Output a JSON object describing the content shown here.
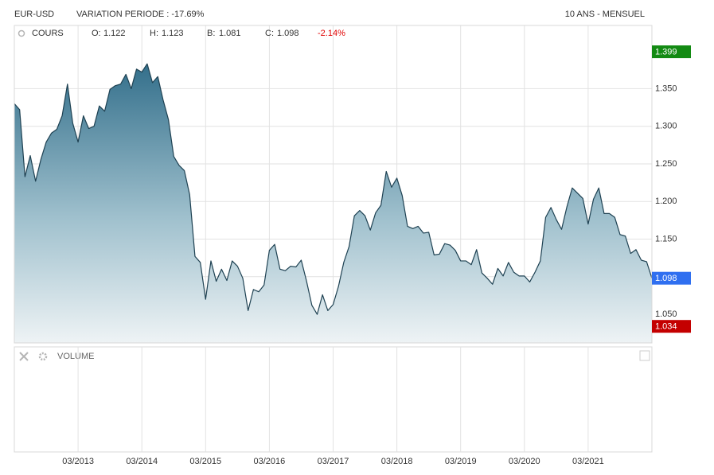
{
  "chart_data": {
    "type": "area",
    "title": "EUR-USD",
    "subtitle": "VARIATION PERIODE : -17.69%",
    "period": "10 ANS - MENSUEL",
    "series_label": "COURS",
    "legend": [
      {
        "key": "O:",
        "value": 1.122
      },
      {
        "key": "H:",
        "value": 1.123
      },
      {
        "key": "B:",
        "value": 1.081
      },
      {
        "key": "C:",
        "value": 1.098
      }
    ],
    "change": "-2.14%",
    "change_color": "#e00000",
    "volume_label": "VOLUME",
    "color": "#1e4152",
    "categories": [
      null,
      null,
      null,
      null,
      null,
      null,
      null,
      null,
      null,
      null,
      null,
      null,
      "03/2013",
      null,
      null,
      null,
      null,
      null,
      null,
      null,
      null,
      null,
      null,
      null,
      "03/2014",
      null,
      null,
      null,
      null,
      null,
      null,
      null,
      null,
      null,
      null,
      null,
      "03/2015",
      null,
      null,
      null,
      null,
      null,
      null,
      null,
      null,
      null,
      null,
      null,
      "03/2016",
      null,
      null,
      null,
      null,
      null,
      null,
      null,
      null,
      null,
      null,
      null,
      "03/2017",
      null,
      null,
      null,
      null,
      null,
      null,
      null,
      null,
      null,
      null,
      null,
      "03/2018",
      null,
      null,
      null,
      null,
      null,
      null,
      null,
      null,
      null,
      null,
      null,
      "03/2019",
      null,
      null,
      null,
      null,
      null,
      null,
      null,
      null,
      null,
      null,
      null,
      "03/2020",
      null,
      null,
      null,
      null,
      null,
      null,
      null,
      null,
      null,
      null,
      null,
      "03/2021",
      null,
      null,
      null,
      null,
      null,
      null,
      null,
      null,
      null,
      null,
      null,
      null
    ],
    "values": [
      1.33,
      1.322,
      1.233,
      1.261,
      1.227,
      1.256,
      1.279,
      1.291,
      1.296,
      1.314,
      1.356,
      1.304,
      1.279,
      1.314,
      1.297,
      1.3,
      1.327,
      1.32,
      1.349,
      1.354,
      1.356,
      1.369,
      1.35,
      1.376,
      1.372,
      1.383,
      1.358,
      1.366,
      1.335,
      1.309,
      1.26,
      1.248,
      1.241,
      1.209,
      1.127,
      1.119,
      1.07,
      1.121,
      1.094,
      1.11,
      1.095,
      1.121,
      1.114,
      1.098,
      1.055,
      1.083,
      1.08,
      1.089,
      1.135,
      1.143,
      1.11,
      1.108,
      1.114,
      1.113,
      1.122,
      1.094,
      1.062,
      1.05,
      1.076,
      1.055,
      1.063,
      1.087,
      1.119,
      1.14,
      1.181,
      1.188,
      1.181,
      1.162,
      1.185,
      1.195,
      1.24,
      1.219,
      1.231,
      1.208,
      1.167,
      1.164,
      1.167,
      1.158,
      1.159,
      1.129,
      1.13,
      1.144,
      1.142,
      1.135,
      1.121,
      1.121,
      1.116,
      1.136,
      1.105,
      1.098,
      1.09,
      1.111,
      1.101,
      1.119,
      1.106,
      1.101,
      1.101,
      1.093,
      1.106,
      1.121,
      1.179,
      1.192,
      1.176,
      1.163,
      1.193,
      1.218,
      1.211,
      1.204,
      1.17,
      1.203,
      1.218,
      1.184,
      1.184,
      1.179,
      1.156,
      1.154,
      1.131,
      1.136,
      1.122,
      1.12,
      1.098
    ],
    "ylim": [
      1.012,
      1.434
    ],
    "yticks": [
      {
        "value": 1.05,
        "label": "1.050"
      },
      {
        "value": 1.1,
        "label": "1.100"
      },
      {
        "value": 1.15,
        "label": "1.150"
      },
      {
        "value": 1.2,
        "label": "1.200"
      },
      {
        "value": 1.25,
        "label": "1.250"
      },
      {
        "value": 1.3,
        "label": "1.300"
      },
      {
        "value": 1.35,
        "label": "1.350"
      }
    ],
    "grid": true,
    "price_markers": [
      {
        "value": 1.399,
        "color": "#138a13"
      },
      {
        "value": 1.098,
        "color": "#2f6ff0"
      },
      {
        "value": 1.034,
        "color": "#c40000"
      }
    ]
  }
}
